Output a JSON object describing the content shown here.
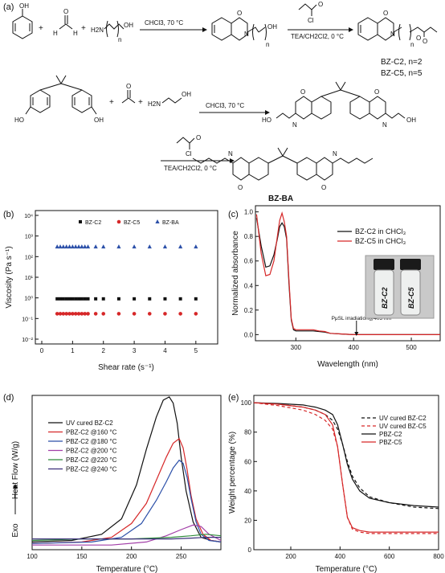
{
  "panel_labels": {
    "a": "(a)",
    "b": "(b)",
    "c": "(c)",
    "d": "(d)",
    "e": "(e)"
  },
  "scheme": {
    "row1_conditions": "CHCl3, 70 °C",
    "row1_reagent2_top": "O",
    "row1_reagent2_cl": "Cl",
    "row1_conditions2": "TEA/CH2Cl2, 0 °C",
    "aminoalcohol": "H2N",
    "aminoalcohol_oh": "OH",
    "n_label": "n",
    "products": [
      "BZ-C2, n=2",
      "BZ-C5, n=5"
    ],
    "row2_conditions": "CHCl3, 70 °C",
    "row2_amine": "H2N",
    "row2_amine_oh": "OH",
    "ho": "HO",
    "oh": "OH",
    "o": "O",
    "h": "H",
    "n": "N",
    "row3_conditions": "TEA/CH2Cl2, 0 °C",
    "product_bzba": "BZ-BA",
    "plus": "+"
  },
  "chart_data": [
    {
      "panel": "b",
      "type": "scatter",
      "xlabel": "Shear rate (s⁻¹)",
      "ylabel": "Viscosity (Pa s⁻¹)",
      "xlim": [
        0,
        5.5
      ],
      "ylim_log10": [
        -2,
        4
      ],
      "log_y": true,
      "x_ticks": [
        "0",
        "1",
        "2",
        "3",
        "4",
        "5"
      ],
      "y_ticks": [
        "10⁻²",
        "10⁻¹",
        "10⁰",
        "10¹",
        "10²",
        "10³",
        "10⁴"
      ],
      "legend": "top",
      "series": [
        {
          "name": "BZ-C2",
          "marker": "square",
          "color": "#111111",
          "x": [
            0.5,
            0.6,
            0.7,
            0.8,
            0.9,
            1.0,
            1.1,
            1.2,
            1.3,
            1.4,
            1.5,
            1.75,
            2.0,
            2.5,
            3.0,
            3.5,
            4.0,
            4.5,
            5.0
          ],
          "y": [
            0.9,
            0.9,
            0.9,
            0.9,
            0.9,
            0.9,
            0.9,
            0.9,
            0.9,
            0.9,
            0.9,
            0.9,
            0.9,
            0.9,
            0.9,
            0.9,
            0.9,
            0.9,
            0.9
          ]
        },
        {
          "name": "BZ-C5",
          "marker": "circle",
          "color": "#d62728",
          "x": [
            0.5,
            0.6,
            0.7,
            0.8,
            0.9,
            1.0,
            1.1,
            1.2,
            1.3,
            1.4,
            1.5,
            1.75,
            2.0,
            2.5,
            3.0,
            3.5,
            4.0,
            4.5,
            5.0
          ],
          "y": [
            0.17,
            0.17,
            0.17,
            0.17,
            0.17,
            0.17,
            0.17,
            0.17,
            0.17,
            0.17,
            0.17,
            0.17,
            0.17,
            0.17,
            0.17,
            0.17,
            0.17,
            0.17,
            0.17
          ]
        },
        {
          "name": "BZ-BA",
          "marker": "triangle",
          "color": "#2b4fa8",
          "x": [
            0.5,
            0.6,
            0.7,
            0.8,
            0.9,
            1.0,
            1.1,
            1.2,
            1.3,
            1.4,
            1.5,
            1.75,
            2.0,
            2.5,
            3.0,
            3.5,
            4.0,
            4.5,
            5.0
          ],
          "y": [
            300,
            300,
            300,
            300,
            300,
            300,
            300,
            300,
            300,
            300,
            300,
            300,
            300,
            300,
            300,
            300,
            300,
            300,
            300
          ]
        }
      ]
    },
    {
      "panel": "c",
      "type": "line",
      "xlabel": "Wavelength (nm)",
      "ylabel": "Normalized absorbance",
      "xlim": [
        230,
        550
      ],
      "ylim": [
        -0.05,
        1.05
      ],
      "x_ticks": [
        300,
        400,
        500
      ],
      "y_ticks": [
        0.0,
        0.2,
        0.4,
        0.6,
        0.8,
        1.0
      ],
      "legend": "top-right",
      "annotation": "PμSL irradiation@405 nm",
      "annotation_x": 405,
      "vial_labels": [
        "BZ-C2",
        "BZ-C5"
      ],
      "series": [
        {
          "name": "BZ-C2 in CHCl₃",
          "color": "#111111",
          "x": [
            232,
            240,
            248,
            255,
            262,
            268,
            272,
            276,
            280,
            284,
            288,
            292,
            296,
            300,
            305,
            310,
            320,
            330,
            340,
            350,
            360,
            380,
            400,
            450,
            500,
            550
          ],
          "y": [
            0.95,
            0.72,
            0.55,
            0.56,
            0.65,
            0.78,
            0.88,
            0.91,
            0.88,
            0.78,
            0.42,
            0.12,
            0.04,
            0.03,
            0.03,
            0.03,
            0.03,
            0.03,
            0.025,
            0.02,
            0.01,
            0.005,
            0.0,
            0.0,
            0.0,
            0.0
          ]
        },
        {
          "name": "BZ-C5 in CHCl₃",
          "color": "#d62728",
          "x": [
            232,
            240,
            248,
            255,
            262,
            268,
            272,
            276,
            280,
            284,
            288,
            292,
            296,
            300,
            305,
            310,
            320,
            330,
            340,
            350,
            360,
            380,
            400,
            450,
            500,
            550
          ],
          "y": [
            0.98,
            0.66,
            0.48,
            0.49,
            0.6,
            0.8,
            0.93,
            0.99,
            0.92,
            0.8,
            0.45,
            0.13,
            0.05,
            0.04,
            0.04,
            0.04,
            0.04,
            0.04,
            0.03,
            0.025,
            0.01,
            0.005,
            0.0,
            0.0,
            0.0,
            0.0
          ]
        }
      ]
    },
    {
      "panel": "d",
      "type": "line",
      "xlabel": "Temperature (°C)",
      "ylabel": "Heat Flow (W/g)",
      "ylabel_prefix": "Exo",
      "xlim": [
        100,
        290
      ],
      "ylim": [
        0,
        1
      ],
      "x_ticks": [
        100,
        150,
        200,
        250
      ],
      "legend": "top-left",
      "series": [
        {
          "name": "UV cured BZ-C2",
          "color": "#111111",
          "x": [
            100,
            140,
            170,
            190,
            205,
            215,
            225,
            232,
            238,
            242,
            246,
            250,
            255,
            262,
            270,
            280,
            290
          ],
          "y": [
            0.05,
            0.06,
            0.1,
            0.2,
            0.42,
            0.65,
            0.86,
            0.97,
            0.99,
            0.95,
            0.82,
            0.6,
            0.38,
            0.18,
            0.08,
            0.06,
            0.05
          ]
        },
        {
          "name": "PBZ-C2 @160 °C",
          "color": "#d62728",
          "x": [
            100,
            150,
            180,
            200,
            215,
            225,
            235,
            242,
            248,
            252,
            256,
            260,
            265,
            272,
            280,
            290
          ],
          "y": [
            0.04,
            0.05,
            0.08,
            0.17,
            0.3,
            0.45,
            0.6,
            0.69,
            0.72,
            0.66,
            0.52,
            0.35,
            0.2,
            0.1,
            0.06,
            0.05
          ]
        },
        {
          "name": "PBZ-C2 @180 °C",
          "color": "#2b4fa8",
          "x": [
            100,
            160,
            190,
            210,
            225,
            235,
            242,
            248,
            252,
            256,
            260,
            265,
            270,
            278,
            290
          ],
          "y": [
            0.04,
            0.05,
            0.08,
            0.17,
            0.32,
            0.44,
            0.53,
            0.58,
            0.56,
            0.47,
            0.33,
            0.18,
            0.1,
            0.06,
            0.05
          ]
        },
        {
          "name": "PBZ-C2 @200 °C",
          "color": "#a23fa8",
          "x": [
            100,
            180,
            215,
            235,
            250,
            262,
            270,
            278,
            290
          ],
          "y": [
            0.03,
            0.03,
            0.05,
            0.09,
            0.13,
            0.16,
            0.15,
            0.1,
            0.06
          ]
        },
        {
          "name": "PBZ-C2 @220 °C",
          "color": "#2e8b3a",
          "x": [
            100,
            150,
            200,
            240,
            260,
            275,
            290
          ],
          "y": [
            0.06,
            0.07,
            0.07,
            0.08,
            0.09,
            0.1,
            0.09
          ]
        },
        {
          "name": "PBZ-C2 @240 °C",
          "color": "#3a2f7a",
          "x": [
            100,
            150,
            200,
            240,
            260,
            275,
            290
          ],
          "y": [
            0.07,
            0.07,
            0.07,
            0.07,
            0.075,
            0.08,
            0.08
          ]
        }
      ]
    },
    {
      "panel": "e",
      "type": "line",
      "xlabel": "Temperature (°C)",
      "ylabel": "Weight percentage (%)",
      "xlim": [
        50,
        800
      ],
      "ylim": [
        0,
        105
      ],
      "x_ticks": [
        200,
        400,
        600,
        800
      ],
      "y_ticks": [
        0,
        20,
        40,
        60,
        80,
        100
      ],
      "legend": "top-right",
      "series": [
        {
          "name": "UV cured BZ-C2",
          "color": "#111111",
          "dash": true,
          "x": [
            50,
            150,
            250,
            300,
            340,
            370,
            390,
            410,
            430,
            450,
            480,
            520,
            600,
            700,
            800
          ],
          "y": [
            100,
            99,
            97,
            95,
            92,
            88,
            82,
            72,
            60,
            50,
            42,
            36,
            32,
            29,
            28
          ]
        },
        {
          "name": "UV cured BZ-C5",
          "color": "#d62728",
          "dash": true,
          "x": [
            50,
            150,
            250,
            300,
            340,
            370,
            390,
            410,
            430,
            450,
            480,
            520,
            600,
            700,
            800
          ],
          "y": [
            100,
            98,
            95,
            92,
            88,
            82,
            70,
            45,
            22,
            14,
            12,
            11,
            11,
            11,
            11
          ]
        },
        {
          "name": "PBZ-C2",
          "color": "#111111",
          "dash": false,
          "x": [
            50,
            150,
            250,
            300,
            340,
            370,
            390,
            410,
            430,
            450,
            480,
            520,
            600,
            700,
            800
          ],
          "y": [
            100,
            99.5,
            98.5,
            97,
            95,
            92,
            85,
            72,
            58,
            48,
            40,
            35,
            32,
            30,
            29
          ]
        },
        {
          "name": "PBZ-C5",
          "color": "#d62728",
          "dash": false,
          "x": [
            50,
            150,
            250,
            300,
            340,
            370,
            390,
            410,
            430,
            450,
            480,
            520,
            600,
            700,
            800
          ],
          "y": [
            100,
            99,
            97,
            95,
            92,
            85,
            70,
            45,
            22,
            15,
            13,
            12,
            12,
            12,
            12
          ]
        }
      ]
    }
  ]
}
